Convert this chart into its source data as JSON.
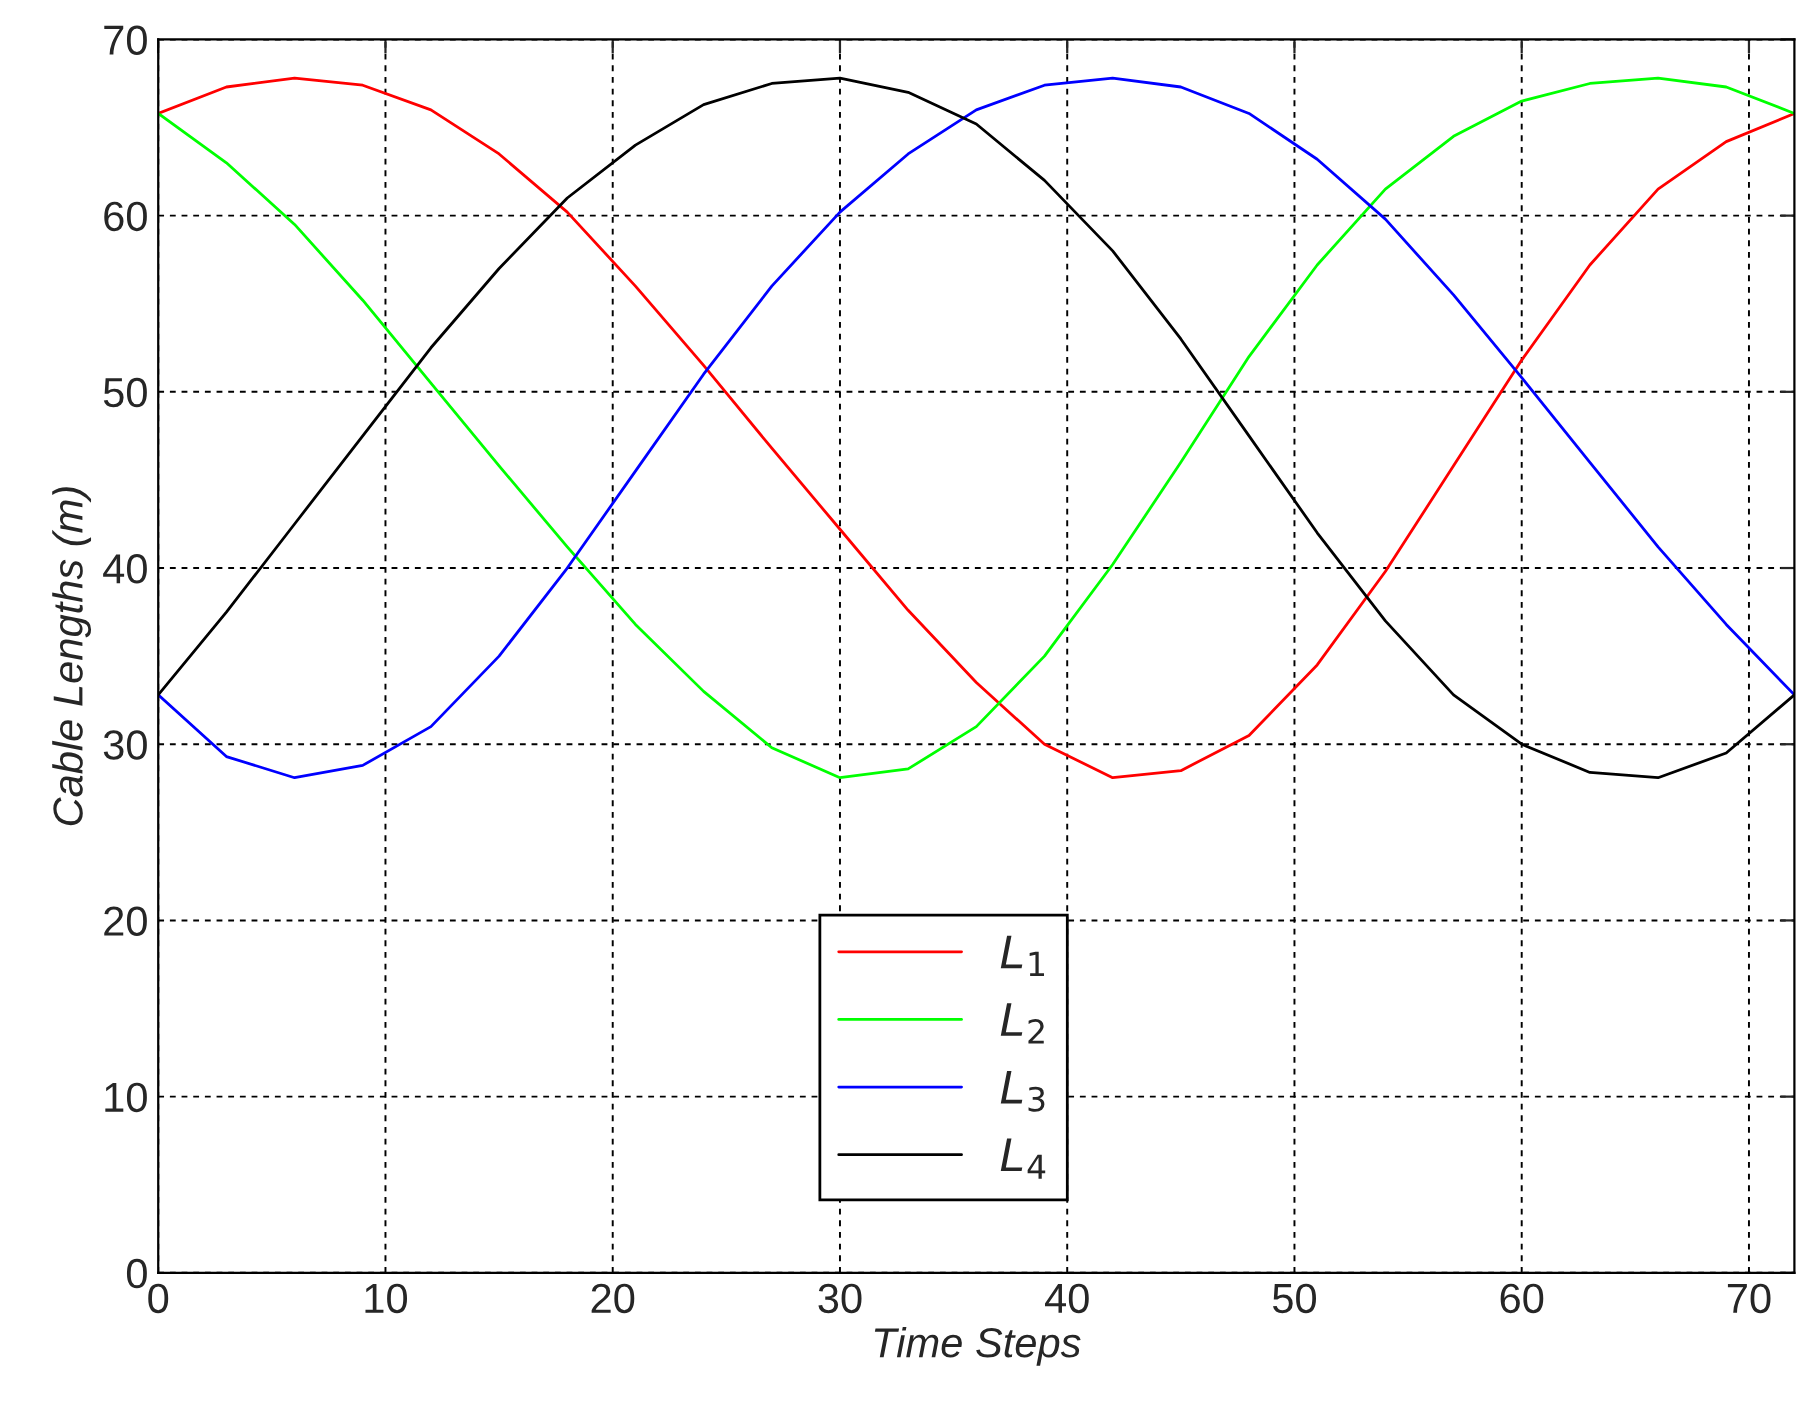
{
  "chart_data": {
    "type": "line",
    "xlabel": "Time Steps",
    "ylabel": "Cable Lengths (m)",
    "x": [
      0,
      3,
      6,
      9,
      12,
      15,
      18,
      21,
      24,
      27,
      30,
      33,
      36,
      39,
      42,
      45,
      48,
      51,
      54,
      57,
      60,
      63,
      66,
      69,
      72
    ],
    "series": [
      {
        "name": "L$_{1}$",
        "color": "#ff0000",
        "values": [
          65.8,
          67.3,
          67.8,
          67.4,
          66.0,
          63.5,
          60.2,
          56.0,
          51.5,
          46.8,
          42.2,
          37.6,
          33.5,
          30.0,
          28.1,
          28.5,
          30.5,
          34.5,
          39.8,
          45.8,
          51.8,
          57.2,
          61.5,
          64.2,
          65.8
        ]
      },
      {
        "name": "L$_{2}$",
        "color": "#00ff00",
        "values": [
          65.8,
          63.0,
          59.5,
          55.2,
          50.5,
          45.8,
          41.2,
          36.8,
          33.0,
          29.8,
          28.1,
          28.6,
          31.0,
          35.0,
          40.2,
          46.0,
          52.0,
          57.2,
          61.5,
          64.5,
          66.5,
          67.5,
          67.8,
          67.3,
          65.8
        ]
      },
      {
        "name": "L$_{3}$",
        "color": "#0000ff",
        "values": [
          32.8,
          29.3,
          28.1,
          28.8,
          31.0,
          35.0,
          40.0,
          45.5,
          51.0,
          56.0,
          60.2,
          63.5,
          66.0,
          67.4,
          67.8,
          67.3,
          65.8,
          63.2,
          59.8,
          55.5,
          50.8,
          46.0,
          41.2,
          36.8,
          32.8
        ]
      },
      {
        "name": "L$_{4}$",
        "color": "#000000",
        "values": [
          32.8,
          37.5,
          42.5,
          47.5,
          52.5,
          57.0,
          61.0,
          64.0,
          66.3,
          67.5,
          67.8,
          67.0,
          65.2,
          62.0,
          58.0,
          53.0,
          47.5,
          42.0,
          37.0,
          32.8,
          30.0,
          28.4,
          28.1,
          29.5,
          32.8
        ]
      }
    ],
    "xlim": [
      0,
      72
    ],
    "xticks": [
      0,
      10,
      20,
      30,
      40,
      50,
      60,
      70
    ],
    "ylim": [
      0,
      70
    ],
    "yticks": [
      0,
      10,
      20,
      30,
      40,
      50,
      60,
      70
    ],
    "grid": true,
    "legend": "bottom",
    "line_style": "solid",
    "marker": "none"
  }
}
